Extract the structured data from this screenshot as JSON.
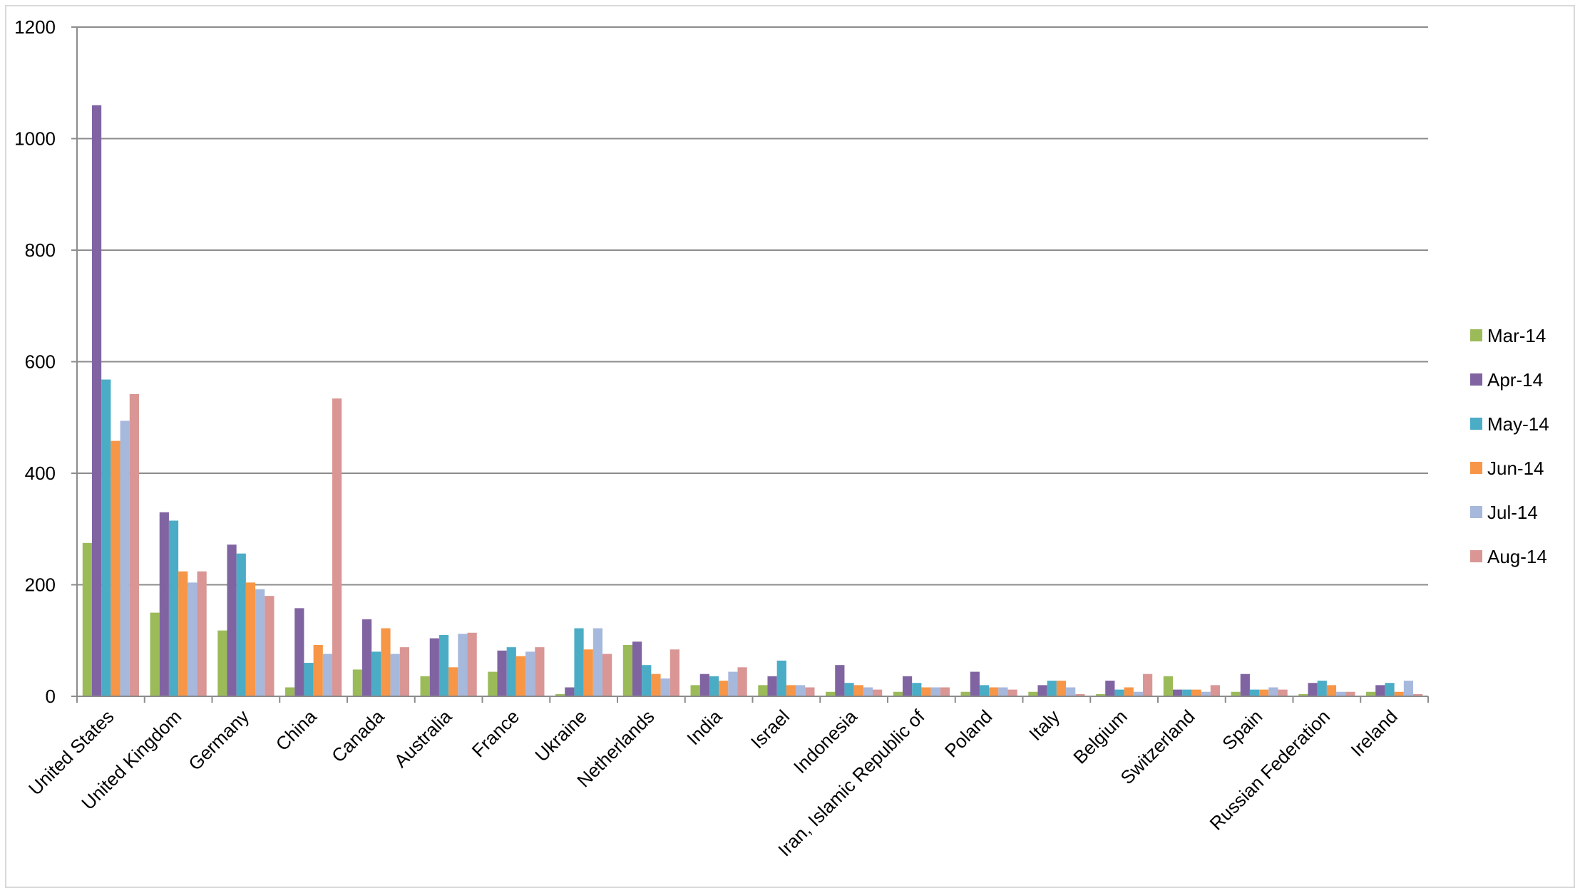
{
  "chart_data": {
    "type": "bar",
    "title": "",
    "xlabel": "",
    "ylabel": "",
    "ylim": [
      0,
      1200
    ],
    "yticks": [
      0,
      200,
      400,
      600,
      800,
      1000,
      1200
    ],
    "grid": true,
    "legend_position": "right",
    "categories": [
      "United States",
      "United Kingdom",
      "Germany",
      "China",
      "Canada",
      "Australia",
      "France",
      "Ukraine",
      "Netherlands",
      "India",
      "Israel",
      "Indonesia",
      "Iran, Islamic Republic of",
      "Poland",
      "Italy",
      "Belgium",
      "Switzerland",
      "Spain",
      "Russian Federation",
      "Ireland"
    ],
    "series": [
      {
        "name": "Mar-14",
        "color": "#9bbb59",
        "values": [
          275,
          150,
          118,
          16,
          48,
          36,
          44,
          4,
          92,
          20,
          20,
          8,
          8,
          8,
          8,
          4,
          36,
          8,
          4,
          8
        ]
      },
      {
        "name": "Apr-14",
        "color": "#8064a2",
        "values": [
          1060,
          330,
          272,
          158,
          138,
          104,
          82,
          16,
          98,
          40,
          36,
          56,
          36,
          44,
          20,
          28,
          12,
          40,
          24,
          20
        ]
      },
      {
        "name": "May-14",
        "color": "#4bacc6",
        "values": [
          568,
          315,
          256,
          60,
          80,
          110,
          88,
          122,
          56,
          36,
          64,
          24,
          24,
          20,
          28,
          12,
          12,
          12,
          28,
          24
        ]
      },
      {
        "name": "Jun-14",
        "color": "#f79646",
        "values": [
          458,
          224,
          204,
          92,
          122,
          52,
          72,
          84,
          40,
          28,
          20,
          20,
          16,
          16,
          28,
          16,
          12,
          12,
          20,
          8
        ]
      },
      {
        "name": "Jul-14",
        "color": "#a6b8dc",
        "values": [
          494,
          204,
          192,
          76,
          76,
          112,
          80,
          122,
          32,
          44,
          20,
          16,
          16,
          16,
          16,
          8,
          8,
          16,
          8,
          28
        ]
      },
      {
        "name": "Aug-14",
        "color": "#d99694",
        "values": [
          542,
          224,
          180,
          534,
          88,
          114,
          88,
          76,
          84,
          52,
          16,
          12,
          16,
          12,
          4,
          40,
          20,
          12,
          8,
          4
        ]
      }
    ]
  }
}
